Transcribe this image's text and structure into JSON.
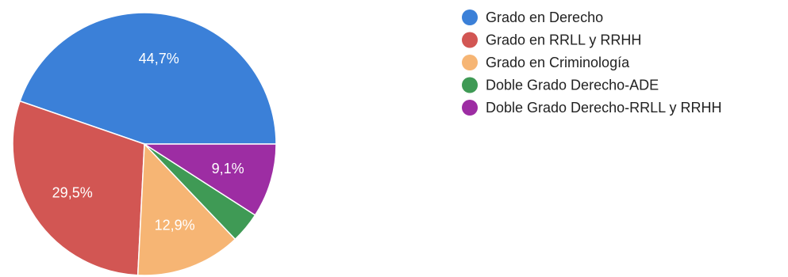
{
  "chart_data": {
    "type": "pie",
    "categories": [
      "Grado en Derecho",
      "Grado en RRLL y RRHH",
      "Grado en Criminología",
      "Doble Grado Derecho-ADE",
      "Doble Grado Derecho-RRLL y RRHH"
    ],
    "values": [
      44.7,
      29.5,
      12.9,
      3.8,
      9.1
    ],
    "data_labels": [
      "44,7%",
      "29,5%",
      "12,9%",
      "",
      "9,1%"
    ],
    "colors": [
      "#3b80d8",
      "#d25653",
      "#f6b574",
      "#3f9a55",
      "#9d2da3"
    ],
    "start_angle_deg": 0,
    "direction": "counterclockwise",
    "legend_position": "right",
    "title": ""
  }
}
